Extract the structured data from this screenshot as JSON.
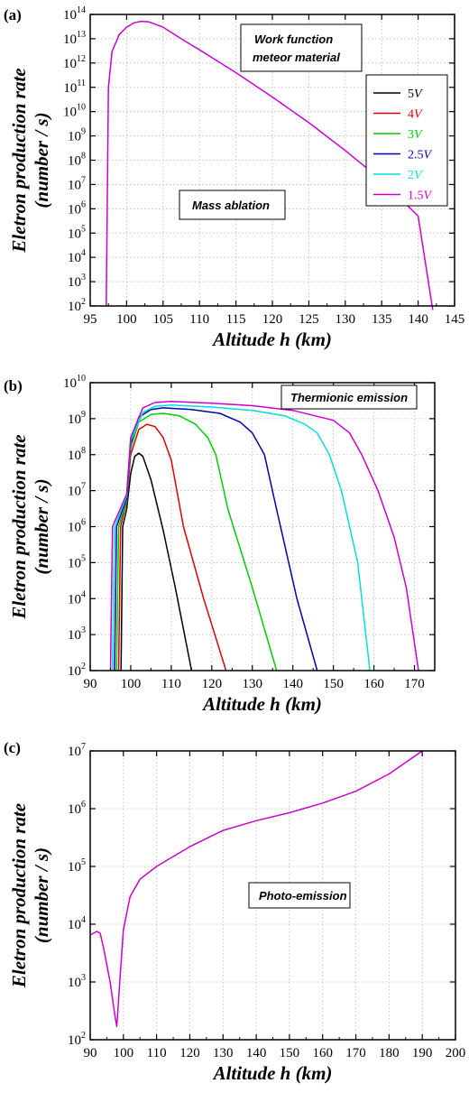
{
  "figure": {
    "panels": [
      {
        "label": "(a)",
        "annotations": [
          "Work function\nmeteor material",
          "Mass ablation"
        ]
      },
      {
        "label": "(b)",
        "annotations": [
          "Thermionic emission"
        ]
      },
      {
        "label": "(c)",
        "annotations": [
          "Photo-emission"
        ]
      }
    ]
  },
  "chart_data": [
    {
      "type": "line",
      "panel": "(a)",
      "xlabel": "Altitude h (km)",
      "ylabel": "Eletron production rate (number / s)",
      "xlim": [
        95,
        145
      ],
      "xticks": [
        95,
        100,
        105,
        110,
        115,
        120,
        125,
        130,
        135,
        140,
        145
      ],
      "ylim": [
        100,
        100000000000000
      ],
      "yscale": "log",
      "ytick_exponents": [
        2,
        3,
        4,
        5,
        6,
        7,
        8,
        9,
        10,
        11,
        12,
        13,
        14
      ],
      "grid": true,
      "legend": {
        "placement": "right",
        "entries": [
          "5V",
          "4V",
          "3V",
          "2.5V",
          "2V",
          "1.5V"
        ]
      },
      "colors": {
        "5V": "#000000",
        "4V": "#dd0000",
        "3V": "#00cc00",
        "2.5V": "#0000aa",
        "2V": "#00dddd",
        "1.5V": "#cc00cc"
      },
      "series": [
        {
          "color": "#cc00cc",
          "points": [
            [
              97.2,
              100
            ],
            [
              97.5,
              100000000000
            ],
            [
              98,
              3000000000000
            ],
            [
              99,
              15000000000000
            ],
            [
              100,
              30000000000000
            ],
            [
              101,
              45000000000000
            ],
            [
              102,
              52000000000000
            ],
            [
              103,
              50000000000000
            ],
            [
              105,
              30000000000000
            ],
            [
              108,
              8000000000000
            ],
            [
              110,
              3500000000000
            ],
            [
              115,
              400000000000
            ],
            [
              120,
              40000000000
            ],
            [
              125,
              3500000000
            ],
            [
              130,
              250000000
            ],
            [
              135,
              15000000
            ],
            [
              140,
              500000
            ],
            [
              142,
              70
            ]
          ]
        }
      ]
    },
    {
      "type": "line",
      "panel": "(b)",
      "xlabel": "Altitude h (km)",
      "ylabel": "Eletron production rate (number / s)",
      "xlim": [
        90,
        175
      ],
      "xticks": [
        90,
        100,
        110,
        120,
        130,
        140,
        150,
        160,
        170
      ],
      "ylim": [
        100,
        10000000000
      ],
      "yscale": "log",
      "ytick_exponents": [
        2,
        3,
        4,
        5,
        6,
        7,
        8,
        9,
        10
      ],
      "grid": true,
      "series": [
        {
          "name": "5V",
          "color": "#000000",
          "points": [
            [
              97.6,
              100
            ],
            [
              98,
              1000000
            ],
            [
              99,
              3000000
            ],
            [
              100,
              30000000
            ],
            [
              101,
              90000000
            ],
            [
              102,
              110000000
            ],
            [
              103,
              90000000
            ],
            [
              105,
              20000000
            ],
            [
              108,
              800000
            ],
            [
              111,
              20000
            ],
            [
              115,
              100
            ]
          ]
        },
        {
          "name": "4V",
          "color": "#dd0000",
          "points": [
            [
              97,
              100
            ],
            [
              97.5,
              1000000
            ],
            [
              99,
              5000000
            ],
            [
              100,
              100000000
            ],
            [
              102,
              500000000
            ],
            [
              104,
              700000000
            ],
            [
              106,
              600000000
            ],
            [
              108,
              300000000
            ],
            [
              110,
              70000000
            ],
            [
              113,
              1000000
            ],
            [
              118,
              10000
            ],
            [
              123.5,
              100
            ]
          ]
        },
        {
          "name": "3V",
          "color": "#00cc00",
          "points": [
            [
              96.5,
              100
            ],
            [
              97,
              1000000
            ],
            [
              99,
              5000000
            ],
            [
              100,
              150000000
            ],
            [
              102,
              800000000
            ],
            [
              105,
              1300000000
            ],
            [
              108,
              1400000000
            ],
            [
              112,
              1200000000
            ],
            [
              116,
              700000000
            ],
            [
              119,
              300000000
            ],
            [
              121,
              100000000
            ],
            [
              124,
              3000000
            ],
            [
              130,
              20000
            ],
            [
              136,
              100
            ]
          ]
        },
        {
          "name": "2.5V",
          "color": "#0000aa",
          "points": [
            [
              96,
              100
            ],
            [
              96.5,
              1000000
            ],
            [
              99,
              6000000
            ],
            [
              100,
              200000000
            ],
            [
              102,
              1100000000
            ],
            [
              105,
              1800000000
            ],
            [
              108,
              2000000000
            ],
            [
              115,
              1800000000
            ],
            [
              122,
              1400000000
            ],
            [
              127,
              800000000
            ],
            [
              130,
              400000000
            ],
            [
              133,
              100000000
            ],
            [
              136,
              3000000
            ],
            [
              141,
              10000
            ],
            [
              146,
              100
            ]
          ]
        },
        {
          "name": "2V",
          "color": "#00dddd",
          "points": [
            [
              95.5,
              100
            ],
            [
              96,
              1000000
            ],
            [
              99,
              7000000
            ],
            [
              100,
              250000000
            ],
            [
              103,
              1500000000
            ],
            [
              106,
              2200000000
            ],
            [
              110,
              2400000000
            ],
            [
              120,
              2100000000
            ],
            [
              130,
              1700000000
            ],
            [
              138,
              1200000000
            ],
            [
              143,
              700000000
            ],
            [
              146,
              400000000
            ],
            [
              149,
              100000000
            ],
            [
              152,
              10000000
            ],
            [
              156,
              100000
            ],
            [
              159,
              100
            ]
          ]
        },
        {
          "name": "1.5V",
          "color": "#cc00cc",
          "points": [
            [
              95,
              100
            ],
            [
              95.5,
              1000000
            ],
            [
              99,
              8000000
            ],
            [
              100,
              300000000
            ],
            [
              103,
              2000000000
            ],
            [
              106,
              2800000000
            ],
            [
              110,
              3000000000
            ],
            [
              120,
              2700000000
            ],
            [
              130,
              2300000000
            ],
            [
              140,
              1700000000
            ],
            [
              150,
              900000000
            ],
            [
              154,
              400000000
            ],
            [
              157,
              100000000
            ],
            [
              161,
              10000000
            ],
            [
              165,
              500000
            ],
            [
              168,
              20000
            ],
            [
              171,
              100
            ]
          ]
        }
      ]
    },
    {
      "type": "line",
      "panel": "(c)",
      "xlabel": "Altitude h (km)",
      "ylabel": "Eletron production rate (number / s)",
      "xlim": [
        90,
        200
      ],
      "xticks": [
        90,
        100,
        110,
        120,
        130,
        140,
        150,
        160,
        170,
        180,
        190,
        200
      ],
      "ylim": [
        100,
        10000000
      ],
      "yscale": "log",
      "ytick_exponents": [
        2,
        3,
        4,
        5,
        6,
        7
      ],
      "grid": true,
      "series": [
        {
          "color": "#cc00cc",
          "points": [
            [
              90,
              6500
            ],
            [
              92,
              7500
            ],
            [
              93,
              7000
            ],
            [
              94,
              4000
            ],
            [
              96,
              1000
            ],
            [
              97.5,
              250
            ],
            [
              98,
              170
            ],
            [
              99,
              1200
            ],
            [
              100,
              8000
            ],
            [
              102,
              30000
            ],
            [
              105,
              60000
            ],
            [
              110,
              100000
            ],
            [
              120,
              220000
            ],
            [
              130,
              420000
            ],
            [
              140,
              620000
            ],
            [
              150,
              850000
            ],
            [
              160,
              1250000
            ],
            [
              170,
              2000000
            ],
            [
              180,
              4000000
            ],
            [
              190,
              10000000
            ]
          ]
        }
      ]
    }
  ]
}
